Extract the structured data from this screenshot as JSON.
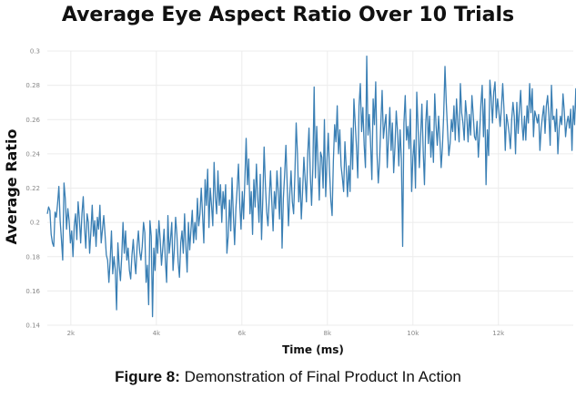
{
  "caption": {
    "label": "Figure 8:",
    "text": " Demonstration of Final Product In Action"
  },
  "chart_data": {
    "type": "line",
    "title": "Average Eye Aspect Ratio Over 10 Trials",
    "xlabel": "Time (ms)",
    "ylabel": "Average Ratio",
    "xlim": [
      1450,
      13750
    ],
    "ylim": [
      0.14,
      0.3
    ],
    "grid": true,
    "line_color": "#3a7fb4",
    "x_ticks": [
      2000,
      4000,
      6000,
      8000,
      10000,
      12000
    ],
    "x_tick_labels": [
      "2k",
      "4k",
      "6k",
      "8k",
      "10k",
      "12k"
    ],
    "y_ticks": [
      0.14,
      0.16,
      0.18,
      0.2,
      0.22,
      0.24,
      0.26,
      0.28,
      0.3
    ],
    "y_tick_labels": [
      "0.14",
      "0.16",
      "0.18",
      "0.2",
      "0.22",
      "0.24",
      "0.26",
      "0.28",
      "0.3"
    ],
    "series": [
      {
        "x_start": 1450,
        "x_step": 30,
        "values": [
          0.205,
          0.209,
          0.207,
          0.193,
          0.188,
          0.186,
          0.206,
          0.203,
          0.211,
          0.221,
          0.201,
          0.19,
          0.178,
          0.223,
          0.214,
          0.196,
          0.208,
          0.201,
          0.188,
          0.195,
          0.18,
          0.198,
          0.205,
          0.19,
          0.212,
          0.202,
          0.188,
          0.205,
          0.215,
          0.197,
          0.185,
          0.205,
          0.2,
          0.182,
          0.195,
          0.21,
          0.192,
          0.201,
          0.186,
          0.203,
          0.196,
          0.21,
          0.188,
          0.196,
          0.204,
          0.193,
          0.181,
          0.178,
          0.165,
          0.178,
          0.195,
          0.17,
          0.18,
          0.172,
          0.149,
          0.188,
          0.175,
          0.166,
          0.18,
          0.2,
          0.182,
          0.195,
          0.178,
          0.185,
          0.172,
          0.167,
          0.181,
          0.19,
          0.178,
          0.17,
          0.186,
          0.195,
          0.183,
          0.178,
          0.186,
          0.2,
          0.194,
          0.165,
          0.175,
          0.152,
          0.201,
          0.192,
          0.145,
          0.185,
          0.172,
          0.196,
          0.182,
          0.201,
          0.19,
          0.175,
          0.185,
          0.196,
          0.178,
          0.165,
          0.204,
          0.182,
          0.19,
          0.2,
          0.172,
          0.184,
          0.203,
          0.193,
          0.177,
          0.168,
          0.188,
          0.195,
          0.182,
          0.205,
          0.186,
          0.171,
          0.2,
          0.184,
          0.196,
          0.207,
          0.188,
          0.2,
          0.19,
          0.214,
          0.198,
          0.205,
          0.22,
          0.205,
          0.188,
          0.225,
          0.21,
          0.231,
          0.197,
          0.22,
          0.21,
          0.198,
          0.235,
          0.215,
          0.205,
          0.23,
          0.21,
          0.222,
          0.2,
          0.218,
          0.208,
          0.222,
          0.182,
          0.192,
          0.213,
          0.195,
          0.226,
          0.205,
          0.187,
          0.208,
          0.22,
          0.234,
          0.211,
          0.196,
          0.218,
          0.202,
          0.225,
          0.249,
          0.222,
          0.237,
          0.205,
          0.218,
          0.193,
          0.225,
          0.209,
          0.234,
          0.215,
          0.2,
          0.228,
          0.19,
          0.214,
          0.244,
          0.222,
          0.206,
          0.198,
          0.214,
          0.23,
          0.212,
          0.195,
          0.218,
          0.208,
          0.23,
          0.218,
          0.202,
          0.232,
          0.185,
          0.214,
          0.228,
          0.245,
          0.222,
          0.198,
          0.216,
          0.23,
          0.212,
          0.205,
          0.228,
          0.258,
          0.24,
          0.212,
          0.226,
          0.202,
          0.218,
          0.238,
          0.225,
          0.212,
          0.24,
          0.255,
          0.228,
          0.21,
          0.232,
          0.279,
          0.226,
          0.256,
          0.235,
          0.213,
          0.241,
          0.238,
          0.22,
          0.26,
          0.215,
          0.236,
          0.252,
          0.23,
          0.213,
          0.204,
          0.236,
          0.257,
          0.247,
          0.268,
          0.24,
          0.254,
          0.233,
          0.226,
          0.218,
          0.247,
          0.232,
          0.215,
          0.233,
          0.218,
          0.255,
          0.231,
          0.272,
          0.258,
          0.244,
          0.226,
          0.268,
          0.281,
          0.253,
          0.267,
          0.245,
          0.232,
          0.297,
          0.251,
          0.263,
          0.246,
          0.225,
          0.272,
          0.257,
          0.282,
          0.24,
          0.223,
          0.236,
          0.258,
          0.277,
          0.249,
          0.257,
          0.263,
          0.232,
          0.25,
          0.267,
          0.242,
          0.258,
          0.229,
          0.244,
          0.265,
          0.253,
          0.233,
          0.254,
          0.237,
          0.186,
          0.258,
          0.274,
          0.248,
          0.256,
          0.243,
          0.266,
          0.218,
          0.238,
          0.248,
          0.22,
          0.276,
          0.256,
          0.232,
          0.25,
          0.269,
          0.242,
          0.222,
          0.258,
          0.271,
          0.246,
          0.262,
          0.238,
          0.253,
          0.235,
          0.275,
          0.257,
          0.245,
          0.262,
          0.249,
          0.232,
          0.244,
          0.263,
          0.291,
          0.27,
          0.254,
          0.239,
          0.246,
          0.26,
          0.253,
          0.268,
          0.248,
          0.272,
          0.258,
          0.247,
          0.281,
          0.264,
          0.258,
          0.248,
          0.271,
          0.262,
          0.247,
          0.263,
          0.251,
          0.274,
          0.263,
          0.25,
          0.248,
          0.259,
          0.238,
          0.252,
          0.269,
          0.28,
          0.25,
          0.272,
          0.222,
          0.254,
          0.239,
          0.283,
          0.273,
          0.258,
          0.276,
          0.282,
          0.261,
          0.272,
          0.265,
          0.256,
          0.267,
          0.281,
          0.266,
          0.242,
          0.263,
          0.258,
          0.252,
          0.243,
          0.26,
          0.27,
          0.262,
          0.24,
          0.27,
          0.252,
          0.266,
          0.277,
          0.258,
          0.248,
          0.262,
          0.248,
          0.268,
          0.258,
          0.281,
          0.264,
          0.278,
          0.25,
          0.265,
          0.262,
          0.258,
          0.263,
          0.242,
          0.255,
          0.262,
          0.268,
          0.252,
          0.268,
          0.274,
          0.262,
          0.245,
          0.28,
          0.26,
          0.262,
          0.253,
          0.266,
          0.24,
          0.255,
          0.262,
          0.257,
          0.275,
          0.265,
          0.25,
          0.258,
          0.262,
          0.255,
          0.266,
          0.242,
          0.268,
          0.257,
          0.278,
          0.253,
          0.264,
          0.231,
          0.268,
          0.294,
          0.258,
          0.282,
          0.255,
          0.248,
          0.236,
          0.266,
          0.27,
          0.258,
          0.287,
          0.248,
          0.26,
          0.278,
          0.265,
          0.249,
          0.262,
          0.244,
          0.258,
          0.252,
          0.266,
          0.27,
          0.256,
          0.262,
          0.225,
          0.276,
          0.268,
          0.258,
          0.262,
          0.245,
          0.262,
          0.268,
          0.258,
          0.253,
          0.28,
          0.257,
          0.248,
          0.264,
          0.287,
          0.27,
          0.255,
          0.246,
          0.262,
          0.278,
          0.25,
          0.282,
          0.281
        ]
      }
    ]
  }
}
